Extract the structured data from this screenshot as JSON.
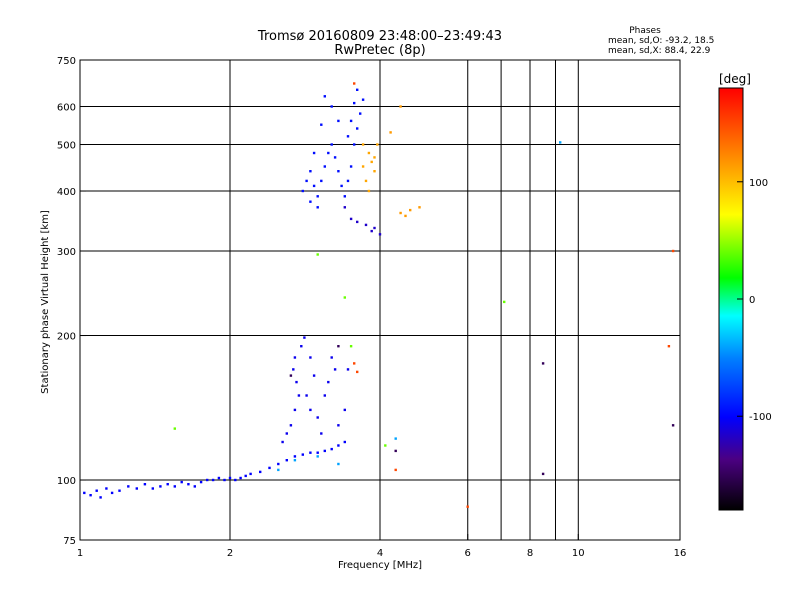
{
  "chart_data": {
    "type": "scatter",
    "title": "Tromsø 20160809 23:48:00–23:49:43",
    "subtitle": "RwPretec (8p)",
    "phase_stats": {
      "heading": "Phases",
      "line_o": "mean, sd,O: -93.2, 18.5",
      "line_x": "mean, sd,X:  88.4, 22.9"
    },
    "xlabel": "Frequency [MHz]",
    "ylabel": "Stationary phase Virtual Height [km]",
    "x_scale": "log",
    "y_scale": "log",
    "xlim": [
      1,
      16
    ],
    "ylim": [
      75,
      750
    ],
    "x_ticks": [
      1,
      2,
      4,
      6,
      8,
      10,
      16
    ],
    "x_tick_labels": [
      "1",
      "2",
      "4",
      "6",
      "8",
      "10",
      "16"
    ],
    "x_grid": [
      2,
      4,
      6,
      7,
      8,
      9,
      10
    ],
    "y_ticks": [
      75,
      100,
      200,
      300,
      400,
      500,
      600,
      750
    ],
    "y_tick_labels": [
      "75",
      "100",
      "200",
      "300",
      "400",
      "500",
      "600",
      "750"
    ],
    "y_grid": [
      100,
      200,
      300,
      400,
      500,
      600
    ],
    "grid": true,
    "colorbar": {
      "label": "[deg]",
      "range": [
        -180,
        180
      ],
      "ticks": [
        100,
        0,
        -100
      ],
      "tick_labels": [
        "100",
        "0",
        "-100"
      ]
    },
    "clusters": [
      {
        "phase": -100,
        "points": [
          [
            1.02,
            94
          ],
          [
            1.05,
            93
          ],
          [
            1.08,
            95
          ],
          [
            1.1,
            92
          ],
          [
            1.13,
            96
          ],
          [
            1.16,
            94
          ],
          [
            1.2,
            95
          ],
          [
            1.25,
            97
          ],
          [
            1.3,
            96
          ],
          [
            1.35,
            98
          ],
          [
            1.4,
            96
          ],
          [
            1.45,
            97
          ],
          [
            1.5,
            98
          ],
          [
            1.55,
            97
          ],
          [
            1.6,
            99
          ],
          [
            1.65,
            98
          ],
          [
            1.7,
            97
          ],
          [
            1.75,
            99
          ],
          [
            1.8,
            100
          ],
          [
            1.85,
            100
          ],
          [
            1.9,
            101
          ],
          [
            1.95,
            100
          ],
          [
            2.0,
            101
          ],
          [
            2.05,
            100
          ],
          [
            2.1,
            101
          ],
          [
            2.15,
            102
          ],
          [
            2.2,
            103
          ],
          [
            2.3,
            104
          ],
          [
            2.4,
            106
          ],
          [
            2.5,
            108
          ],
          [
            2.6,
            110
          ],
          [
            2.7,
            112
          ],
          [
            2.8,
            113
          ],
          [
            2.9,
            114
          ],
          [
            3.0,
            114
          ],
          [
            3.1,
            115
          ],
          [
            3.2,
            116
          ],
          [
            3.3,
            118
          ],
          [
            3.4,
            120
          ]
        ]
      },
      {
        "phase": -105,
        "points": [
          [
            2.55,
            120
          ],
          [
            2.6,
            125
          ],
          [
            2.65,
            130
          ],
          [
            2.7,
            140
          ],
          [
            2.75,
            150
          ],
          [
            2.72,
            160
          ],
          [
            2.68,
            170
          ],
          [
            2.7,
            180
          ],
          [
            2.78,
            190
          ],
          [
            2.82,
            198
          ],
          [
            2.9,
            180
          ],
          [
            2.95,
            165
          ],
          [
            2.85,
            150
          ],
          [
            2.9,
            140
          ],
          [
            3.0,
            135
          ],
          [
            3.05,
            125
          ],
          [
            3.1,
            150
          ],
          [
            3.2,
            180
          ],
          [
            3.15,
            160
          ],
          [
            3.25,
            170
          ],
          [
            3.3,
            130
          ],
          [
            3.4,
            140
          ],
          [
            3.45,
            170
          ]
        ]
      },
      {
        "phase": -95,
        "points": [
          [
            2.8,
            400
          ],
          [
            2.85,
            420
          ],
          [
            2.9,
            440
          ],
          [
            2.95,
            410
          ],
          [
            3.0,
            390
          ],
          [
            3.05,
            420
          ],
          [
            3.1,
            450
          ],
          [
            3.15,
            480
          ],
          [
            3.2,
            500
          ],
          [
            3.25,
            470
          ],
          [
            3.3,
            440
          ],
          [
            3.35,
            410
          ],
          [
            3.4,
            390
          ],
          [
            3.45,
            420
          ],
          [
            3.5,
            450
          ],
          [
            3.55,
            500
          ],
          [
            3.6,
            540
          ],
          [
            3.65,
            580
          ],
          [
            3.7,
            620
          ],
          [
            3.6,
            650
          ],
          [
            3.55,
            610
          ],
          [
            3.5,
            560
          ],
          [
            3.45,
            520
          ],
          [
            3.3,
            560
          ],
          [
            3.2,
            600
          ],
          [
            3.1,
            630
          ],
          [
            3.05,
            550
          ],
          [
            2.95,
            480
          ],
          [
            2.9,
            380
          ],
          [
            3.0,
            370
          ]
        ]
      },
      {
        "phase": -115,
        "points": [
          [
            3.4,
            370
          ],
          [
            3.5,
            350
          ],
          [
            3.6,
            345
          ],
          [
            3.75,
            340
          ],
          [
            3.85,
            330
          ],
          [
            4.0,
            325
          ],
          [
            3.9,
            335
          ]
        ]
      },
      {
        "phase": 110,
        "points": [
          [
            3.7,
            500
          ],
          [
            3.8,
            480
          ],
          [
            3.85,
            460
          ],
          [
            3.9,
            440
          ],
          [
            3.75,
            420
          ],
          [
            3.8,
            400
          ],
          [
            3.9,
            470
          ],
          [
            3.95,
            500
          ],
          [
            3.7,
            450
          ]
        ]
      },
      {
        "phase": 115,
        "points": [
          [
            4.4,
            360
          ],
          [
            4.6,
            365
          ],
          [
            4.8,
            370
          ],
          [
            4.5,
            355
          ],
          [
            4.2,
            530
          ],
          [
            4.4,
            600
          ]
        ]
      },
      {
        "phase": 40,
        "points": [
          [
            1.55,
            128
          ],
          [
            3.0,
            295
          ],
          [
            3.4,
            240
          ],
          [
            3.5,
            190
          ],
          [
            4.1,
            118
          ],
          [
            7.1,
            235
          ]
        ]
      },
      {
        "phase": 150,
        "points": [
          [
            3.55,
            175
          ],
          [
            3.6,
            168
          ],
          [
            4.3,
            105
          ],
          [
            6.0,
            88
          ],
          [
            15.2,
            190
          ],
          [
            15.5,
            300
          ],
          [
            3.55,
            670
          ]
        ]
      },
      {
        "phase": -150,
        "points": [
          [
            3.3,
            190
          ],
          [
            2.65,
            165
          ],
          [
            8.5,
            175
          ],
          [
            8.5,
            103
          ],
          [
            15.5,
            130
          ],
          [
            4.3,
            115
          ]
        ]
      },
      {
        "phase": -40,
        "points": [
          [
            2.5,
            105
          ],
          [
            2.7,
            110
          ],
          [
            3.0,
            112
          ],
          [
            3.3,
            108
          ],
          [
            4.3,
            122
          ],
          [
            9.2,
            505
          ]
        ]
      }
    ]
  }
}
